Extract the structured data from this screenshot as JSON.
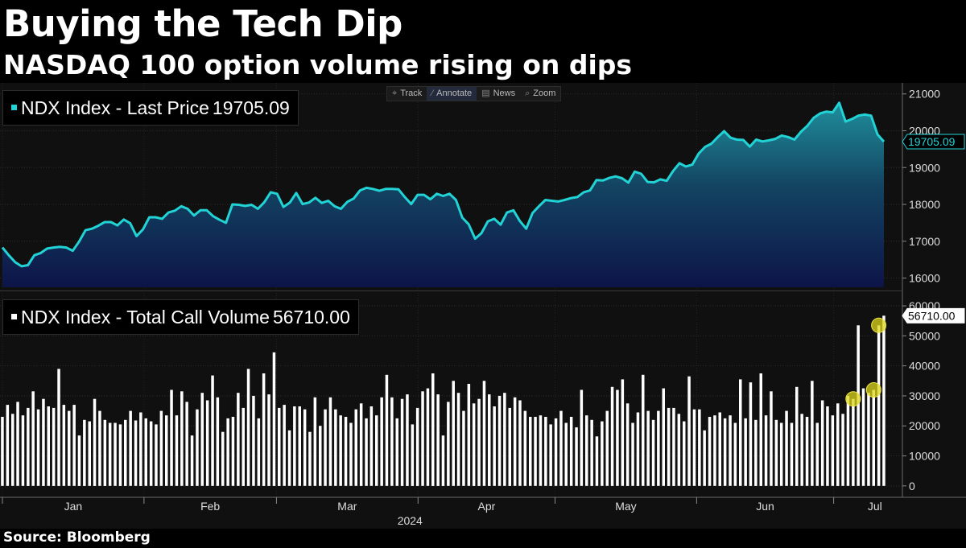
{
  "header": {
    "title": "Buying the Tech Dip",
    "subtitle": "NASDAQ 100 option volume rising on dips"
  },
  "toolbar": {
    "buttons": [
      {
        "label": "Track",
        "icon": "crosshair-icon"
      },
      {
        "label": "Annotate",
        "icon": "pen-icon"
      },
      {
        "label": "News",
        "icon": "news-icon"
      },
      {
        "label": "Zoom",
        "icon": "zoom-icon"
      }
    ],
    "active": "Annotate"
  },
  "source": "Source: Bloomberg",
  "colors": {
    "price_line": "#22d3d6",
    "bars": "#ffffff",
    "highlight": "#ded51a",
    "background": "#000000",
    "panel": "#101010"
  },
  "chart_data": [
    {
      "type": "area",
      "series": [
        {
          "name": "NDX Index - Last Price",
          "last_value": "19705.09",
          "values": [
            16830,
            16620,
            16430,
            16320,
            16350,
            16620,
            16680,
            16800,
            16830,
            16850,
            16830,
            16740,
            16990,
            17300,
            17340,
            17420,
            17520,
            17520,
            17430,
            17590,
            17490,
            17140,
            17320,
            17650,
            17650,
            17610,
            17780,
            17830,
            17950,
            17880,
            17700,
            17840,
            17840,
            17680,
            17580,
            17500,
            18000,
            17990,
            17960,
            17990,
            17880,
            18060,
            18330,
            18290,
            17930,
            18050,
            18310,
            18010,
            18050,
            18180,
            18040,
            18100,
            17950,
            17880,
            18070,
            18160,
            18380,
            18450,
            18420,
            18370,
            18420,
            18420,
            18410,
            18200,
            18010,
            18260,
            18260,
            18140,
            18290,
            18230,
            18290,
            18120,
            17640,
            17460,
            17070,
            17220,
            17540,
            17610,
            17450,
            17780,
            17840,
            17550,
            17340,
            17770,
            17950,
            18120,
            18100,
            18080,
            18120,
            18170,
            18200,
            18330,
            18380,
            18660,
            18650,
            18720,
            18760,
            18710,
            18590,
            18890,
            18830,
            18610,
            18600,
            18680,
            18640,
            18910,
            19120,
            19030,
            19080,
            19380,
            19560,
            19650,
            19830,
            19990,
            19810,
            19760,
            19750,
            19570,
            19760,
            19710,
            19740,
            19780,
            19870,
            19830,
            19760,
            19970,
            20130,
            20350,
            20470,
            20520,
            20500,
            20760,
            20250,
            20320,
            20410,
            20440,
            20410,
            19900,
            19705.09
          ]
        }
      ],
      "x": {
        "start": "2024-01-01",
        "tick_labels": [
          "Jan",
          "Feb",
          "Mar",
          "Apr",
          "May",
          "Jun",
          "Jul"
        ],
        "year_label": "2024"
      },
      "y_ticks": [
        "16000",
        "17000",
        "18000",
        "19000",
        "20000",
        "21000"
      ],
      "ylim": [
        15750,
        21300
      ],
      "grid": true,
      "legend": "top-left"
    },
    {
      "type": "bar",
      "series": [
        {
          "name": "NDX Index - Total Call Volume",
          "last_value": "56710.00",
          "values": [
            23000,
            27000,
            24000,
            28000,
            23500,
            26000,
            31500,
            25500,
            29000,
            26500,
            26000,
            39000,
            27000,
            25000,
            27000,
            16800,
            22000,
            21500,
            29000,
            25000,
            22000,
            21000,
            21000,
            20500,
            22000,
            25000,
            21800,
            24500,
            22500,
            21500,
            20500,
            25000,
            23500,
            32000,
            23500,
            31500,
            28000,
            16800,
            25500,
            31000,
            28500,
            36800,
            29500,
            18000,
            22500,
            23000,
            31000,
            26000,
            39000,
            30000,
            22500,
            37500,
            30500,
            44500,
            26000,
            27000,
            18500,
            26500,
            26500,
            25500,
            18000,
            29500,
            20000,
            25500,
            29500,
            25500,
            23500,
            23000,
            21000,
            25500,
            27500,
            22500,
            26500,
            23500,
            29500,
            37000,
            29500,
            22500,
            29000,
            30500,
            20500,
            26000,
            31500,
            32500,
            37500,
            30500,
            16800,
            28000,
            35000,
            31000,
            25000,
            34000,
            27500,
            29000,
            35000,
            30500,
            26500,
            30000,
            31000,
            26000,
            29500,
            28500,
            25000,
            23000,
            23000,
            23500,
            23000,
            20500,
            22500,
            25000,
            21000,
            23000,
            19500,
            32000,
            23500,
            22000,
            16500,
            21500,
            25000,
            33000,
            32000,
            35500,
            27500,
            21000,
            24500,
            37000,
            25000,
            22000,
            25000,
            32500,
            26000,
            26000,
            24000,
            21500,
            36500,
            25500,
            25500,
            18500,
            23000,
            23500,
            24500,
            22500,
            23500,
            21000,
            35500,
            22500,
            34500,
            22000,
            37500,
            23500,
            31500,
            22000,
            21000,
            25000,
            21000,
            33000,
            24000,
            23000,
            35000,
            21000,
            28500,
            26500,
            23500,
            27500,
            24000,
            30000,
            29000,
            53500,
            32500,
            31000,
            32000,
            53500,
            56710
          ]
        }
      ],
      "highlighted_points": [
        166,
        170,
        171
      ],
      "y_ticks": [
        "0",
        "10000",
        "20000",
        "30000",
        "40000",
        "50000",
        "60000"
      ],
      "ylim": [
        -3800,
        63500
      ],
      "grid": true,
      "legend": "top-left"
    }
  ]
}
